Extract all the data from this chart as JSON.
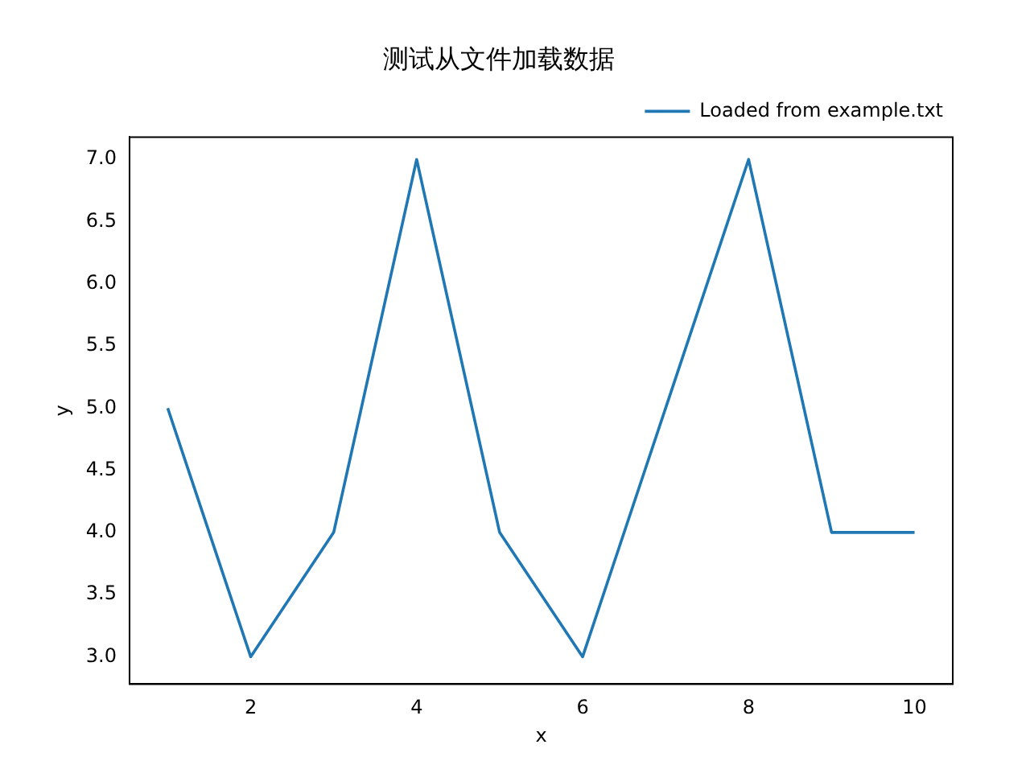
{
  "chart_data": {
    "type": "line",
    "title": "测试从文件加载数据",
    "xlabel": "x",
    "ylabel": "y",
    "x": [
      1,
      2,
      3,
      4,
      5,
      6,
      7,
      8,
      9,
      10
    ],
    "series": [
      {
        "name": "Loaded from example.txt",
        "color": "#1f77b4",
        "values": [
          5,
          3,
          4,
          7,
          4,
          3,
          5,
          7,
          4,
          4
        ]
      }
    ],
    "xlim": [
      0.54,
      10.46
    ],
    "xticks": [
      2,
      4,
      6,
      8,
      10
    ],
    "ylim": [
      2.78,
      7.18
    ],
    "yticks": [
      {
        "value": 3,
        "label": "3.0"
      },
      {
        "value": 3.5,
        "label": "3.5"
      },
      {
        "value": 4,
        "label": "4.0"
      },
      {
        "value": 4.5,
        "label": "4.5"
      },
      {
        "value": 5,
        "label": "5.0"
      },
      {
        "value": 5.5,
        "label": "5.5"
      },
      {
        "value": 6,
        "label": "6.0"
      },
      {
        "value": 6.5,
        "label": "6.5"
      },
      {
        "value": 7,
        "label": "7.0"
      }
    ],
    "grid": false,
    "legend": "top right",
    "marker": "none",
    "line_style": "solid"
  }
}
